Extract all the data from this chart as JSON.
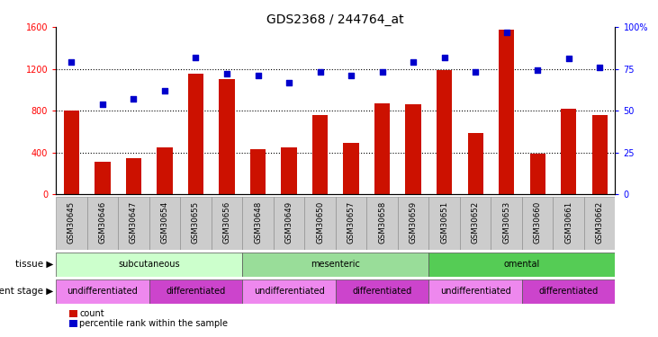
{
  "title": "GDS2368 / 244764_at",
  "samples": [
    "GSM30645",
    "GSM30646",
    "GSM30647",
    "GSM30654",
    "GSM30655",
    "GSM30656",
    "GSM30648",
    "GSM30649",
    "GSM30650",
    "GSM30657",
    "GSM30658",
    "GSM30659",
    "GSM30651",
    "GSM30652",
    "GSM30653",
    "GSM30660",
    "GSM30661",
    "GSM30662"
  ],
  "counts": [
    800,
    310,
    350,
    450,
    1150,
    1100,
    430,
    450,
    760,
    490,
    870,
    860,
    1190,
    590,
    1570,
    390,
    820,
    760
  ],
  "percentiles": [
    79,
    54,
    57,
    62,
    82,
    72,
    71,
    67,
    73,
    71,
    73,
    79,
    82,
    73,
    97,
    74,
    81,
    76
  ],
  "ylim_left": [
    0,
    1600
  ],
  "ylim_right": [
    0,
    100
  ],
  "yticks_left": [
    0,
    400,
    800,
    1200,
    1600
  ],
  "yticks_right": [
    0,
    25,
    50,
    75,
    100
  ],
  "bar_color": "#cc1100",
  "dot_color": "#0000cc",
  "tissue_groups": [
    {
      "label": "subcutaneous",
      "start": 0,
      "end": 6,
      "color": "#ccffcc"
    },
    {
      "label": "mesenteric",
      "start": 6,
      "end": 12,
      "color": "#99dd99"
    },
    {
      "label": "omental",
      "start": 12,
      "end": 18,
      "color": "#55cc55"
    }
  ],
  "dev_stage_groups": [
    {
      "label": "undifferentiated",
      "start": 0,
      "end": 3,
      "color": "#ee88ee"
    },
    {
      "label": "differentiated",
      "start": 3,
      "end": 6,
      "color": "#cc44cc"
    },
    {
      "label": "undifferentiated",
      "start": 6,
      "end": 9,
      "color": "#ee88ee"
    },
    {
      "label": "differentiated",
      "start": 9,
      "end": 12,
      "color": "#cc44cc"
    },
    {
      "label": "undifferentiated",
      "start": 12,
      "end": 15,
      "color": "#ee88ee"
    },
    {
      "label": "differentiated",
      "start": 15,
      "end": 18,
      "color": "#cc44cc"
    }
  ],
  "legend_count_color": "#cc1100",
  "legend_dot_color": "#0000cc",
  "tissue_label": "tissue",
  "dev_stage_label": "development stage",
  "count_legend": "count",
  "percentile_legend": "percentile rank within the sample",
  "background_color": "#ffffff",
  "xtick_bg_color": "#cccccc",
  "grid_color": "#000000",
  "grid_style": "dotted",
  "grid_linewidth": 0.8,
  "bar_width": 0.5,
  "dot_size": 18,
  "title_fontsize": 10,
  "tick_fontsize": 7,
  "label_fontsize": 7,
  "row_label_fontsize": 7.5
}
